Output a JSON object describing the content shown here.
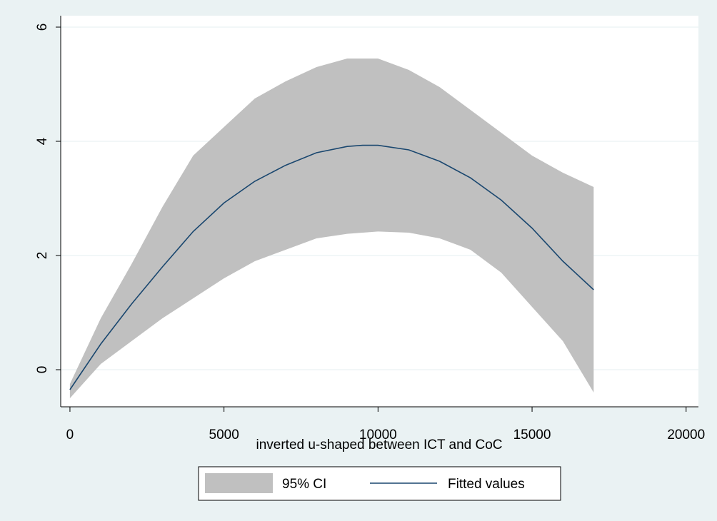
{
  "chart_data": {
    "type": "line",
    "title": "",
    "xlabel": "inverted u-shaped  between ICT and CoC",
    "ylabel": "",
    "xlim": [
      -300,
      20400
    ],
    "ylim": [
      -0.65,
      6.2
    ],
    "x_ticks": [
      0,
      5000,
      10000,
      15000,
      20000
    ],
    "x_tick_labels": [
      "0",
      "5000",
      "10000",
      "15000",
      "20000"
    ],
    "y_ticks": [
      0,
      2,
      4,
      6
    ],
    "y_tick_labels": [
      "0",
      "2",
      "4",
      "6"
    ],
    "grid": "horizontal",
    "legend_position": "bottom",
    "series": [
      {
        "name": "95% CI",
        "kind": "band",
        "color": "#c0c0c0",
        "x": [
          0,
          1000,
          2000,
          3000,
          4000,
          5000,
          6000,
          7000,
          8000,
          9000,
          10000,
          11000,
          12000,
          13000,
          14000,
          15000,
          16000,
          17000
        ],
        "lower": [
          -0.5,
          0.1,
          0.5,
          0.9,
          1.25,
          1.6,
          1.9,
          2.1,
          2.3,
          2.38,
          2.42,
          2.4,
          2.3,
          2.1,
          1.7,
          1.1,
          0.5,
          -0.4
        ],
        "upper": [
          -0.25,
          0.9,
          1.85,
          2.85,
          3.75,
          4.25,
          4.75,
          5.05,
          5.3,
          5.45,
          5.45,
          5.25,
          4.95,
          4.55,
          4.15,
          3.75,
          3.45,
          3.2
        ]
      },
      {
        "name": "Fitted values",
        "kind": "line",
        "color": "#1a476f",
        "x": [
          0,
          500,
          1000,
          2000,
          3000,
          4000,
          5000,
          6000,
          7000,
          8000,
          9000,
          9500,
          10000,
          11000,
          12000,
          13000,
          14000,
          15000,
          16000,
          17000
        ],
        "y": [
          -0.35,
          0.05,
          0.45,
          1.15,
          1.8,
          2.42,
          2.92,
          3.3,
          3.58,
          3.8,
          3.91,
          3.93,
          3.93,
          3.85,
          3.65,
          3.36,
          2.97,
          2.48,
          1.9,
          1.4
        ]
      }
    ],
    "legend": [
      {
        "label": "95% CI",
        "symbol": "band"
      },
      {
        "label": "Fitted values",
        "symbol": "line"
      }
    ]
  }
}
